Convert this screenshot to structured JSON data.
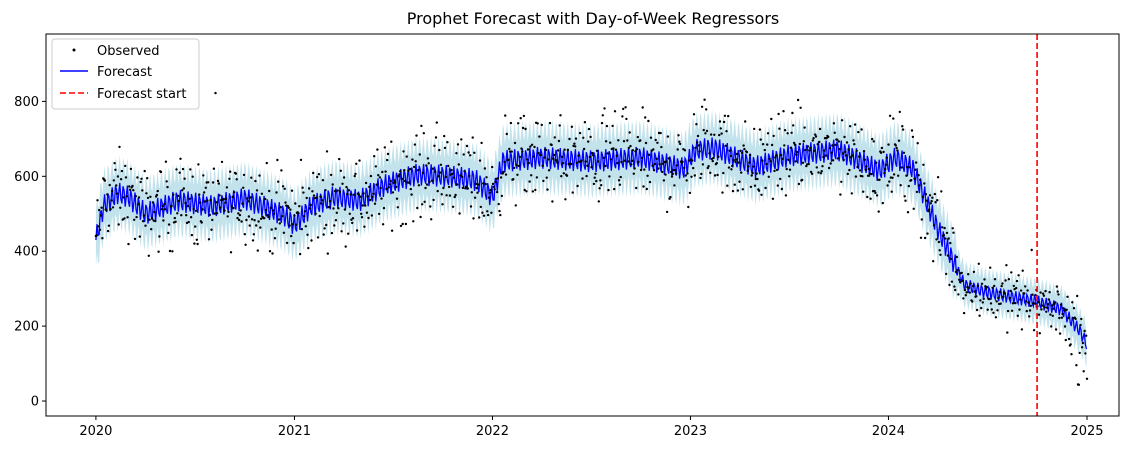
{
  "chart_data": {
    "type": "line",
    "title": "Prophet Forecast with Day-of-Week Regressors",
    "xlabel": "",
    "ylabel": "",
    "x_range": [
      "2019-10-01",
      "2025-03-01"
    ],
    "ylim": [
      -40,
      980
    ],
    "x_ticks": [
      {
        "date": "2020-01-01",
        "label": "2020"
      },
      {
        "date": "2021-01-01",
        "label": "2021"
      },
      {
        "date": "2022-01-01",
        "label": "2022"
      },
      {
        "date": "2023-01-01",
        "label": "2023"
      },
      {
        "date": "2024-01-01",
        "label": "2024"
      },
      {
        "date": "2025-01-01",
        "label": "2025"
      }
    ],
    "y_ticks": [
      {
        "value": 0,
        "label": "0"
      },
      {
        "value": 200,
        "label": "200"
      },
      {
        "value": 400,
        "label": "400"
      },
      {
        "value": 600,
        "label": "600"
      },
      {
        "value": 800,
        "label": "800"
      }
    ],
    "weekly_amplitude": 60,
    "band_half_width": 65,
    "trend": [
      {
        "date": "2020-01-01",
        "value": 430
      },
      {
        "date": "2020-01-15",
        "value": 520
      },
      {
        "date": "2020-02-10",
        "value": 555
      },
      {
        "date": "2020-03-01",
        "value": 545
      },
      {
        "date": "2020-04-01",
        "value": 500
      },
      {
        "date": "2020-06-01",
        "value": 535
      },
      {
        "date": "2020-08-01",
        "value": 520
      },
      {
        "date": "2020-10-01",
        "value": 540
      },
      {
        "date": "2020-12-15",
        "value": 495
      },
      {
        "date": "2021-01-01",
        "value": 470
      },
      {
        "date": "2021-02-01",
        "value": 520
      },
      {
        "date": "2021-03-15",
        "value": 545
      },
      {
        "date": "2021-05-01",
        "value": 535
      },
      {
        "date": "2021-06-15",
        "value": 575
      },
      {
        "date": "2021-08-15",
        "value": 605
      },
      {
        "date": "2021-10-15",
        "value": 600
      },
      {
        "date": "2021-12-01",
        "value": 590
      },
      {
        "date": "2022-01-01",
        "value": 545
      },
      {
        "date": "2022-01-20",
        "value": 640
      },
      {
        "date": "2022-04-01",
        "value": 650
      },
      {
        "date": "2022-07-01",
        "value": 640
      },
      {
        "date": "2022-10-01",
        "value": 650
      },
      {
        "date": "2022-12-20",
        "value": 620
      },
      {
        "date": "2023-01-10",
        "value": 670
      },
      {
        "date": "2023-02-15",
        "value": 675
      },
      {
        "date": "2023-05-01",
        "value": 625
      },
      {
        "date": "2023-07-01",
        "value": 655
      },
      {
        "date": "2023-10-01",
        "value": 670
      },
      {
        "date": "2023-12-15",
        "value": 615
      },
      {
        "date": "2024-01-15",
        "value": 650
      },
      {
        "date": "2024-02-15",
        "value": 620
      },
      {
        "date": "2024-04-01",
        "value": 460
      },
      {
        "date": "2024-05-20",
        "value": 310
      },
      {
        "date": "2024-07-01",
        "value": 290
      },
      {
        "date": "2024-10-01",
        "value": 265
      },
      {
        "date": "2024-11-15",
        "value": 245
      },
      {
        "date": "2024-12-20",
        "value": 185
      },
      {
        "date": "2025-01-01",
        "value": 150
      }
    ],
    "series": [
      {
        "name": "Observed",
        "color": "#000000",
        "marker": "point"
      },
      {
        "name": "Forecast",
        "color": "#0000ff",
        "line": "solid"
      },
      {
        "name": "Forecast start",
        "color": "#ff0000",
        "line": "dashed",
        "date": "2024-10-01"
      }
    ],
    "interval_color": "#add8e6",
    "legend": {
      "position": "top-left"
    }
  }
}
